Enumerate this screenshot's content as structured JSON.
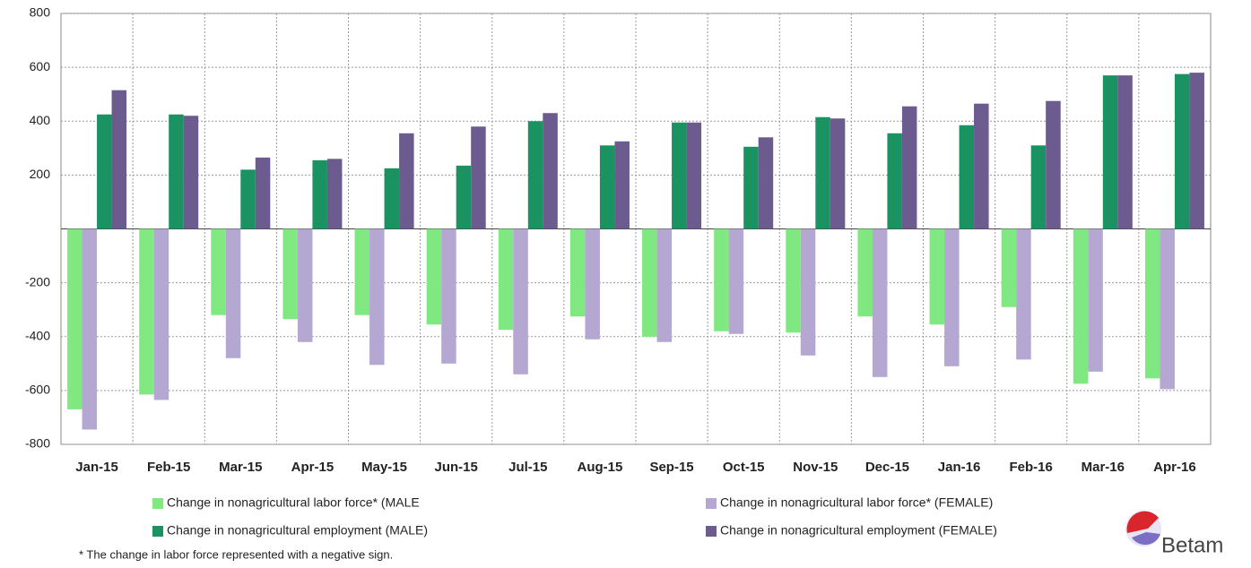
{
  "chart_data": {
    "type": "bar",
    "categories": [
      "Jan-15",
      "Feb-15",
      "Mar-15",
      "Apr-15",
      "May-15",
      "Jun-15",
      "Jul-15",
      "Aug-15",
      "Sep-15",
      "Oct-15",
      "Nov-15",
      "Dec-15",
      "Jan-16",
      "Feb-16",
      "Mar-16",
      "Apr-16"
    ],
    "series": [
      {
        "name": "Change in nonagricultural labor force* (MALE",
        "color": "#80e880",
        "values": [
          -670,
          -615,
          -320,
          -335,
          -320,
          -355,
          -375,
          -325,
          -400,
          -380,
          -385,
          -325,
          -355,
          -290,
          -575,
          -555
        ]
      },
      {
        "name": "Change in nonagricultural labor force* (FEMALE)",
        "color": "#b4a8d2",
        "values": [
          -745,
          -635,
          -480,
          -420,
          -505,
          -500,
          -540,
          -410,
          -420,
          -390,
          -470,
          -550,
          -510,
          -485,
          -530,
          -595
        ]
      },
      {
        "name": "Change in nonagricultural employment (MALE)",
        "color": "#1b9262",
        "values": [
          425,
          425,
          220,
          255,
          225,
          235,
          400,
          310,
          395,
          305,
          415,
          355,
          385,
          310,
          570,
          575
        ]
      },
      {
        "name": "Change in nonagricultural employment (FEMALE)",
        "color": "#6b5b8f",
        "values": [
          515,
          420,
          265,
          260,
          355,
          380,
          430,
          325,
          395,
          340,
          410,
          455,
          465,
          475,
          570,
          580
        ]
      }
    ],
    "ylim": [
      -800,
      800
    ],
    "yticks": [
      -800,
      -600,
      -400,
      -200,
      200,
      400,
      600,
      800
    ],
    "grid": true,
    "footnote": "* The change in labor force represented with a negative sign.",
    "logo": "Betam"
  }
}
